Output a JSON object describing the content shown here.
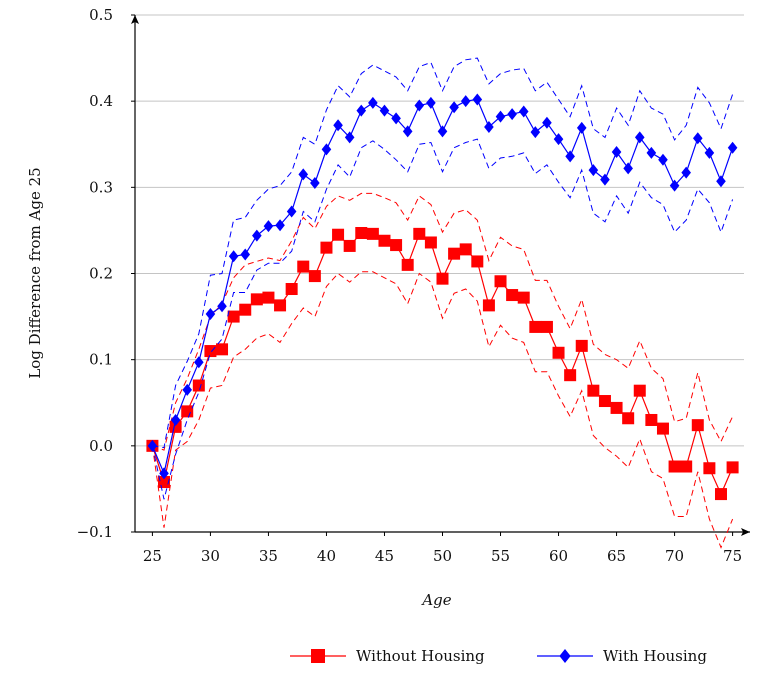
{
  "chart_data": {
    "type": "line",
    "title": "",
    "xlabel": "Age",
    "ylabel": "Log Difference from Age 25",
    "xlim": [
      23.5,
      76.5
    ],
    "ylim": [
      -0.1,
      0.5
    ],
    "xticks": [
      "25",
      "30",
      "35",
      "40",
      "45",
      "50",
      "55",
      "60",
      "65",
      "70",
      "75"
    ],
    "yticks": [
      "−0.1",
      "0.0",
      "0.1",
      "0.2",
      "0.3",
      "0.4",
      "0.5"
    ],
    "grid": "horizontal",
    "legend_position": "bottom-right",
    "x": [
      25,
      26,
      27,
      28,
      29,
      30,
      31,
      32,
      33,
      34,
      35,
      36,
      37,
      38,
      39,
      40,
      41,
      42,
      43,
      44,
      45,
      46,
      47,
      48,
      49,
      50,
      51,
      52,
      53,
      54,
      55,
      56,
      57,
      58,
      59,
      60,
      61,
      62,
      63,
      64,
      65,
      66,
      67,
      68,
      69,
      70,
      71,
      72,
      73,
      74,
      75
    ],
    "series": [
      {
        "name": "Without Housing",
        "color": "#ff0000",
        "marker": "square",
        "values": [
          0.0,
          -0.042,
          0.022,
          0.04,
          0.07,
          0.11,
          0.112,
          0.15,
          0.158,
          0.17,
          0.172,
          0.163,
          0.182,
          0.208,
          0.197,
          0.23,
          0.245,
          0.232,
          0.247,
          0.246,
          0.238,
          0.233,
          0.21,
          0.246,
          0.236,
          0.194,
          0.223,
          0.228,
          0.214,
          0.163,
          0.191,
          0.175,
          0.172,
          0.138,
          0.138,
          0.108,
          0.082,
          0.116,
          0.064,
          0.052,
          0.044,
          0.032,
          0.064,
          0.03,
          0.02,
          -0.024,
          -0.024,
          0.024,
          -0.026,
          -0.056,
          -0.025
        ],
        "ci_upper": [
          0.0,
          -0.005,
          0.05,
          0.078,
          0.112,
          0.15,
          0.165,
          0.195,
          0.21,
          0.214,
          0.218,
          0.215,
          0.238,
          0.265,
          0.252,
          0.278,
          0.29,
          0.285,
          0.293,
          0.293,
          0.288,
          0.282,
          0.262,
          0.29,
          0.28,
          0.248,
          0.27,
          0.274,
          0.262,
          0.215,
          0.242,
          0.232,
          0.228,
          0.192,
          0.192,
          0.162,
          0.136,
          0.17,
          0.118,
          0.106,
          0.1,
          0.09,
          0.122,
          0.09,
          0.078,
          0.028,
          0.032,
          0.085,
          0.03,
          0.005,
          0.034
        ],
        "ci_lower": [
          0.0,
          -0.095,
          -0.005,
          0.005,
          0.03,
          0.067,
          0.07,
          0.103,
          0.112,
          0.125,
          0.13,
          0.12,
          0.142,
          0.16,
          0.15,
          0.185,
          0.2,
          0.19,
          0.202,
          0.202,
          0.195,
          0.188,
          0.165,
          0.2,
          0.19,
          0.148,
          0.177,
          0.182,
          0.168,
          0.115,
          0.14,
          0.125,
          0.12,
          0.086,
          0.086,
          0.058,
          0.034,
          0.064,
          0.012,
          -0.002,
          -0.012,
          -0.025,
          0.008,
          -0.03,
          -0.038,
          -0.082,
          -0.082,
          -0.03,
          -0.085,
          -0.118,
          -0.085
        ]
      },
      {
        "name": "With Housing",
        "color": "#0000ff",
        "marker": "diamond",
        "values": [
          0.0,
          -0.032,
          0.03,
          0.065,
          0.097,
          0.153,
          0.162,
          0.22,
          0.222,
          0.244,
          0.255,
          0.256,
          0.272,
          0.315,
          0.305,
          0.344,
          0.372,
          0.358,
          0.389,
          0.398,
          0.389,
          0.38,
          0.365,
          0.395,
          0.398,
          0.365,
          0.393,
          0.4,
          0.402,
          0.37,
          0.382,
          0.385,
          0.388,
          0.364,
          0.375,
          0.356,
          0.336,
          0.369,
          0.32,
          0.309,
          0.341,
          0.322,
          0.358,
          0.34,
          0.332,
          0.302,
          0.317,
          0.357,
          0.34,
          0.307,
          0.346
        ],
        "ci_upper": [
          0.0,
          -0.002,
          0.07,
          0.098,
          0.13,
          0.198,
          0.2,
          0.262,
          0.265,
          0.285,
          0.298,
          0.302,
          0.318,
          0.358,
          0.35,
          0.39,
          0.418,
          0.405,
          0.432,
          0.442,
          0.435,
          0.428,
          0.412,
          0.44,
          0.445,
          0.412,
          0.44,
          0.448,
          0.45,
          0.42,
          0.432,
          0.436,
          0.438,
          0.412,
          0.422,
          0.402,
          0.382,
          0.418,
          0.368,
          0.358,
          0.392,
          0.372,
          0.412,
          0.392,
          0.385,
          0.355,
          0.372,
          0.416,
          0.398,
          0.368,
          0.408
        ],
        "ci_lower": [
          0.0,
          -0.062,
          -0.01,
          0.03,
          0.062,
          0.108,
          0.124,
          0.178,
          0.178,
          0.204,
          0.212,
          0.212,
          0.226,
          0.272,
          0.26,
          0.298,
          0.326,
          0.312,
          0.346,
          0.354,
          0.344,
          0.332,
          0.318,
          0.35,
          0.352,
          0.318,
          0.346,
          0.352,
          0.356,
          0.322,
          0.334,
          0.336,
          0.34,
          0.316,
          0.326,
          0.306,
          0.288,
          0.32,
          0.27,
          0.26,
          0.29,
          0.27,
          0.306,
          0.288,
          0.28,
          0.248,
          0.262,
          0.298,
          0.282,
          0.248,
          0.286
        ]
      }
    ]
  }
}
